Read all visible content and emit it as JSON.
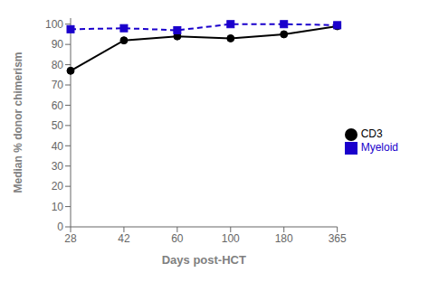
{
  "chart_data": {
    "type": "line",
    "categories": [
      "28",
      "42",
      "60",
      "100",
      "180",
      "365"
    ],
    "series": [
      {
        "name": "CD3",
        "color": "#000000",
        "values": [
          77,
          92,
          94,
          93,
          95,
          99
        ],
        "marker": "circle",
        "line_style": "solid"
      },
      {
        "name": "Myeloid",
        "color": "#1a00cc",
        "values": [
          97.5,
          98,
          97,
          100,
          100,
          99.5
        ],
        "marker": "square",
        "line_style": "dashed"
      }
    ],
    "xlabel": "Days post-HCT",
    "ylabel": "Median % donor chimerism",
    "ylim": [
      0,
      103
    ],
    "yticks": [
      0,
      10,
      20,
      30,
      40,
      50,
      60,
      70,
      80,
      90,
      100
    ],
    "grid": false,
    "legend": "right"
  }
}
